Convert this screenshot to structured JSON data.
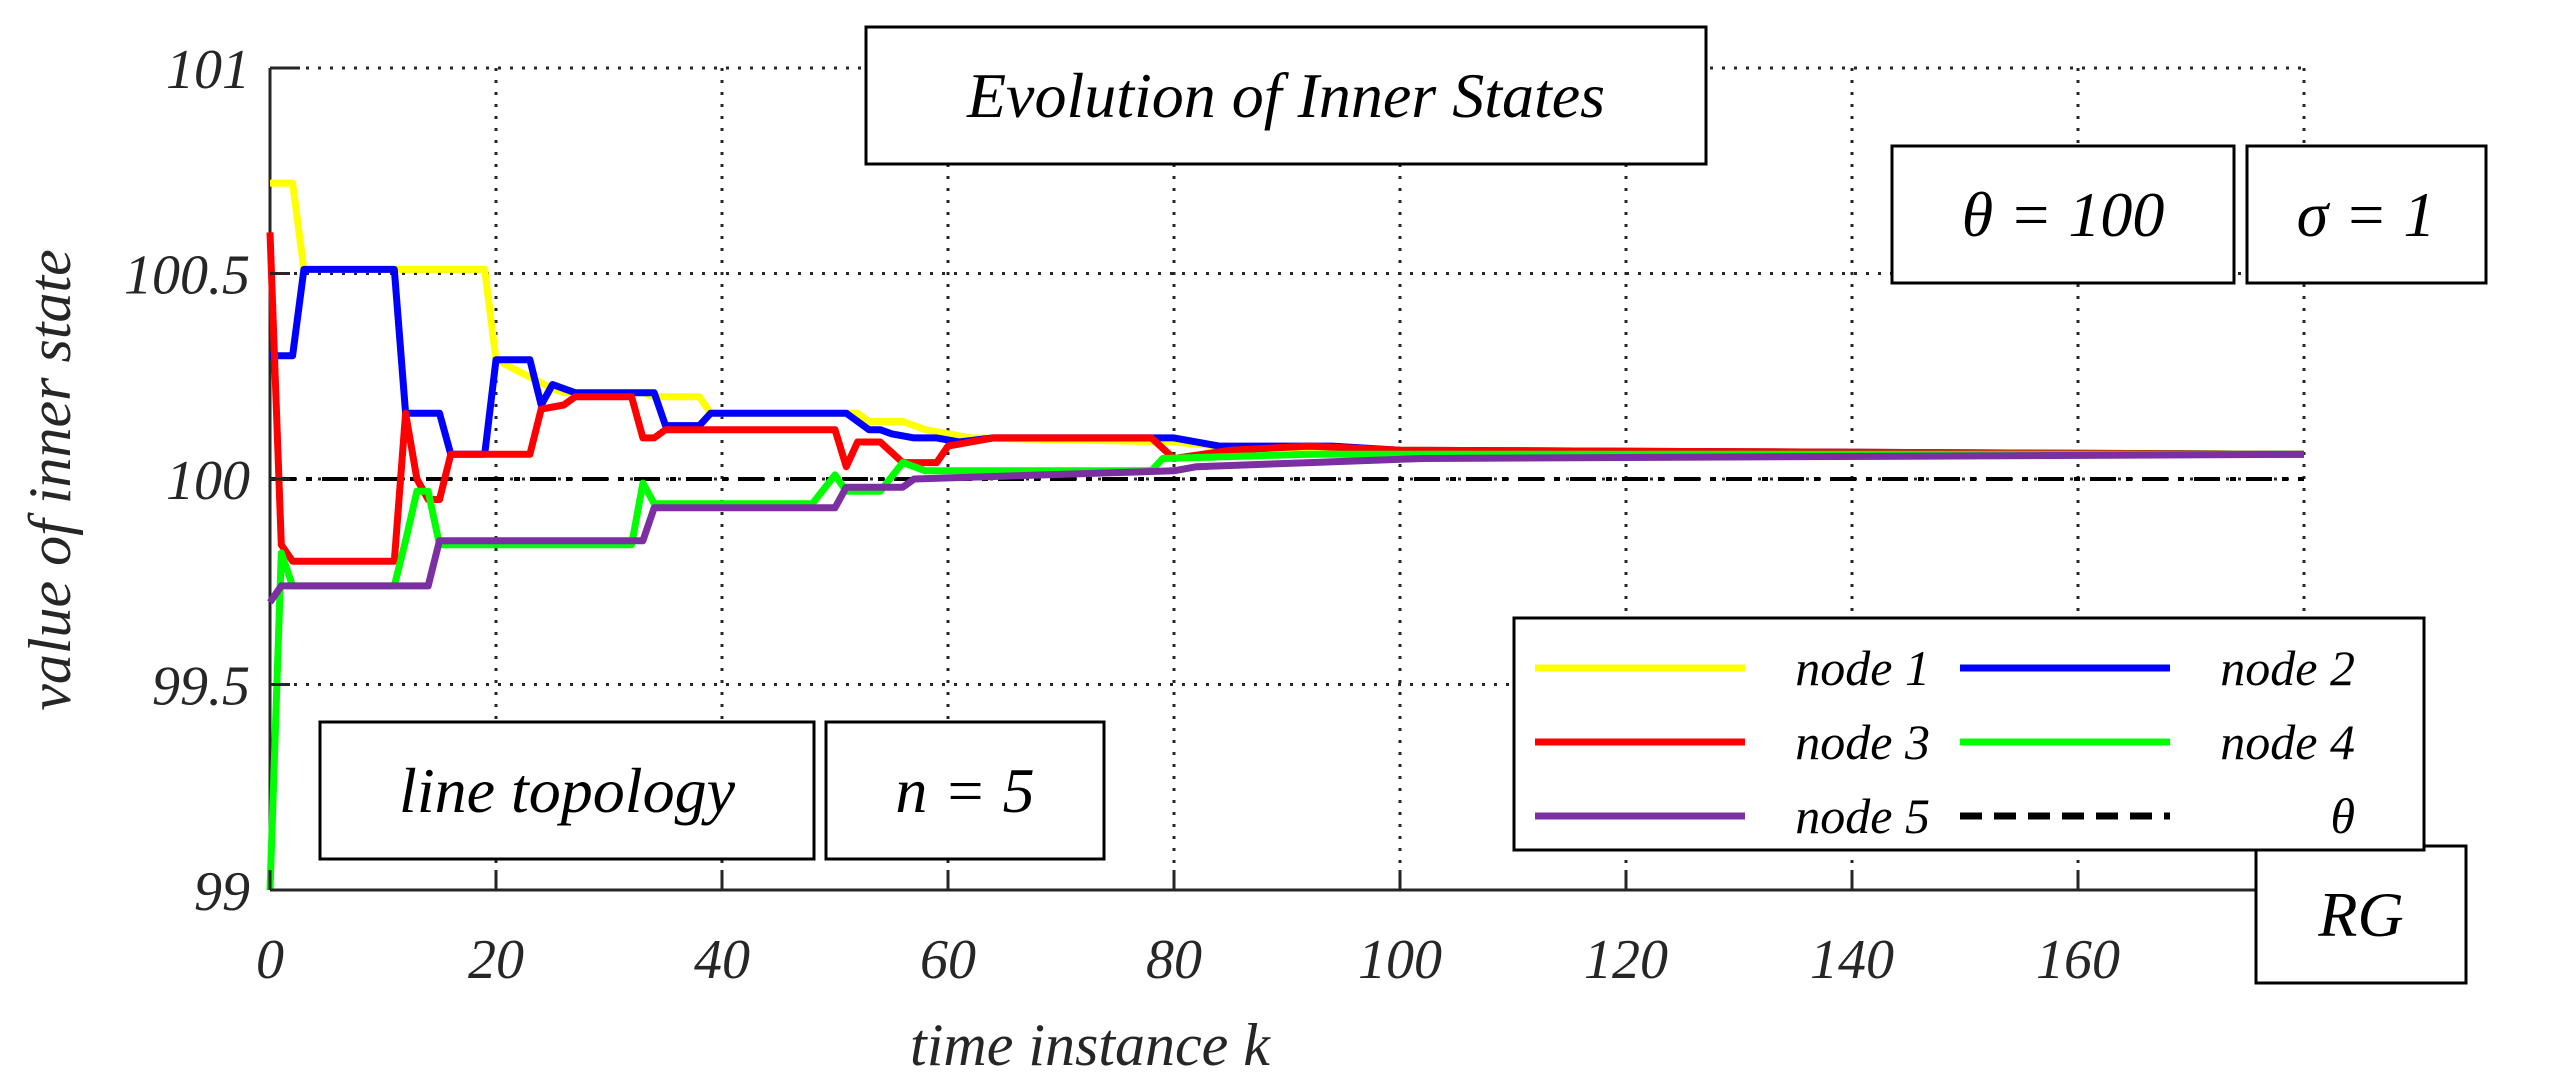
{
  "chart_data": {
    "type": "line",
    "title": "Evolution of Inner States",
    "xlabel": "time instance k",
    "ylabel": "value of inner state",
    "xlim": [
      0,
      180
    ],
    "ylim": [
      99,
      101
    ],
    "xticks": [
      0,
      20,
      40,
      60,
      80,
      100,
      120,
      140,
      160
    ],
    "xtick_labels": [
      "0",
      "20",
      "40",
      "60",
      "80",
      "100",
      "120",
      "140",
      "160"
    ],
    "yticks": [
      99,
      99.5,
      100,
      100.5,
      101
    ],
    "ytick_labels": [
      "99",
      "99.5",
      "100",
      "100.5",
      "101"
    ],
    "grid": true,
    "legend_position": "lower-right",
    "annotations": {
      "theta_box": "θ = 100",
      "sigma_box": "σ = 1",
      "topology_box": "line topology",
      "n_box": "n = 5",
      "method_box": "RG"
    },
    "series": [
      {
        "name": "node 1",
        "color": "#ffff00",
        "points": [
          [
            0,
            100.72
          ],
          [
            2,
            100.72
          ],
          [
            3,
            100.51
          ],
          [
            19,
            100.51
          ],
          [
            20,
            100.29
          ],
          [
            25,
            100.22
          ],
          [
            26,
            100.21
          ],
          [
            33,
            100.21
          ],
          [
            34,
            100.2
          ],
          [
            38,
            100.2
          ],
          [
            39,
            100.16
          ],
          [
            52,
            100.16
          ],
          [
            53,
            100.14
          ],
          [
            56,
            100.14
          ],
          [
            58,
            100.12
          ],
          [
            62,
            100.1
          ],
          [
            80,
            100.09
          ],
          [
            84,
            100.08
          ],
          [
            100,
            100.07
          ],
          [
            180,
            100.06
          ]
        ]
      },
      {
        "name": "node 2",
        "color": "#0000ff",
        "points": [
          [
            0,
            100.3
          ],
          [
            2,
            100.3
          ],
          [
            3,
            100.51
          ],
          [
            11,
            100.51
          ],
          [
            12,
            100.16
          ],
          [
            15,
            100.16
          ],
          [
            16,
            100.06
          ],
          [
            19,
            100.06
          ],
          [
            20,
            100.29
          ],
          [
            23,
            100.29
          ],
          [
            24,
            100.18
          ],
          [
            25,
            100.23
          ],
          [
            27,
            100.21
          ],
          [
            34,
            100.21
          ],
          [
            35,
            100.13
          ],
          [
            38,
            100.13
          ],
          [
            39,
            100.16
          ],
          [
            51,
            100.16
          ],
          [
            53,
            100.12
          ],
          [
            54,
            100.12
          ],
          [
            55,
            100.11
          ],
          [
            57,
            100.1
          ],
          [
            59,
            100.1
          ],
          [
            61,
            100.09
          ],
          [
            64,
            100.1
          ],
          [
            80,
            100.1
          ],
          [
            84,
            100.08
          ],
          [
            94,
            100.08
          ],
          [
            100,
            100.07
          ],
          [
            180,
            100.06
          ]
        ]
      },
      {
        "name": "node 3",
        "color": "#ff0000",
        "points": [
          [
            0,
            100.6
          ],
          [
            1,
            99.84
          ],
          [
            2,
            99.8
          ],
          [
            11,
            99.8
          ],
          [
            12,
            100.16
          ],
          [
            13,
            100.0
          ],
          [
            14,
            99.95
          ],
          [
            15,
            99.95
          ],
          [
            16,
            100.06
          ],
          [
            23,
            100.06
          ],
          [
            24,
            100.17
          ],
          [
            26,
            100.18
          ],
          [
            27,
            100.2
          ],
          [
            32,
            100.2
          ],
          [
            33,
            100.1
          ],
          [
            34,
            100.1
          ],
          [
            35,
            100.12
          ],
          [
            50,
            100.12
          ],
          [
            51,
            100.03
          ],
          [
            52,
            100.09
          ],
          [
            54,
            100.09
          ],
          [
            56,
            100.04
          ],
          [
            59,
            100.04
          ],
          [
            60,
            100.08
          ],
          [
            64,
            100.1
          ],
          [
            78,
            100.1
          ],
          [
            80,
            100.05
          ],
          [
            85,
            100.07
          ],
          [
            92,
            100.08
          ],
          [
            100,
            100.07
          ],
          [
            180,
            100.06
          ]
        ]
      },
      {
        "name": "node 4",
        "color": "#00ff00",
        "points": [
          [
            0,
            99.0
          ],
          [
            1,
            99.82
          ],
          [
            2,
            99.74
          ],
          [
            11,
            99.74
          ],
          [
            12,
            99.85
          ],
          [
            13,
            99.97
          ],
          [
            14,
            99.97
          ],
          [
            15,
            99.84
          ],
          [
            32,
            99.84
          ],
          [
            33,
            99.99
          ],
          [
            34,
            99.94
          ],
          [
            48,
            99.94
          ],
          [
            50,
            100.01
          ],
          [
            51,
            99.97
          ],
          [
            54,
            99.97
          ],
          [
            56,
            100.04
          ],
          [
            58,
            100.02
          ],
          [
            78,
            100.02
          ],
          [
            79,
            100.05
          ],
          [
            92,
            100.06
          ],
          [
            180,
            100.06
          ]
        ]
      },
      {
        "name": "node 5",
        "color": "#7b2fa0",
        "points": [
          [
            0,
            99.7
          ],
          [
            1,
            99.74
          ],
          [
            11,
            99.74
          ],
          [
            12,
            99.74
          ],
          [
            14,
            99.74
          ],
          [
            15,
            99.85
          ],
          [
            33,
            99.85
          ],
          [
            34,
            99.93
          ],
          [
            50,
            99.93
          ],
          [
            51,
            99.98
          ],
          [
            56,
            99.98
          ],
          [
            57,
            100.0
          ],
          [
            80,
            100.02
          ],
          [
            82,
            100.03
          ],
          [
            92,
            100.04
          ],
          [
            102,
            100.05
          ],
          [
            180,
            100.06
          ]
        ]
      }
    ],
    "reference": {
      "name": "θ",
      "value": 100,
      "color": "#000000",
      "style": "dash-dot"
    }
  }
}
